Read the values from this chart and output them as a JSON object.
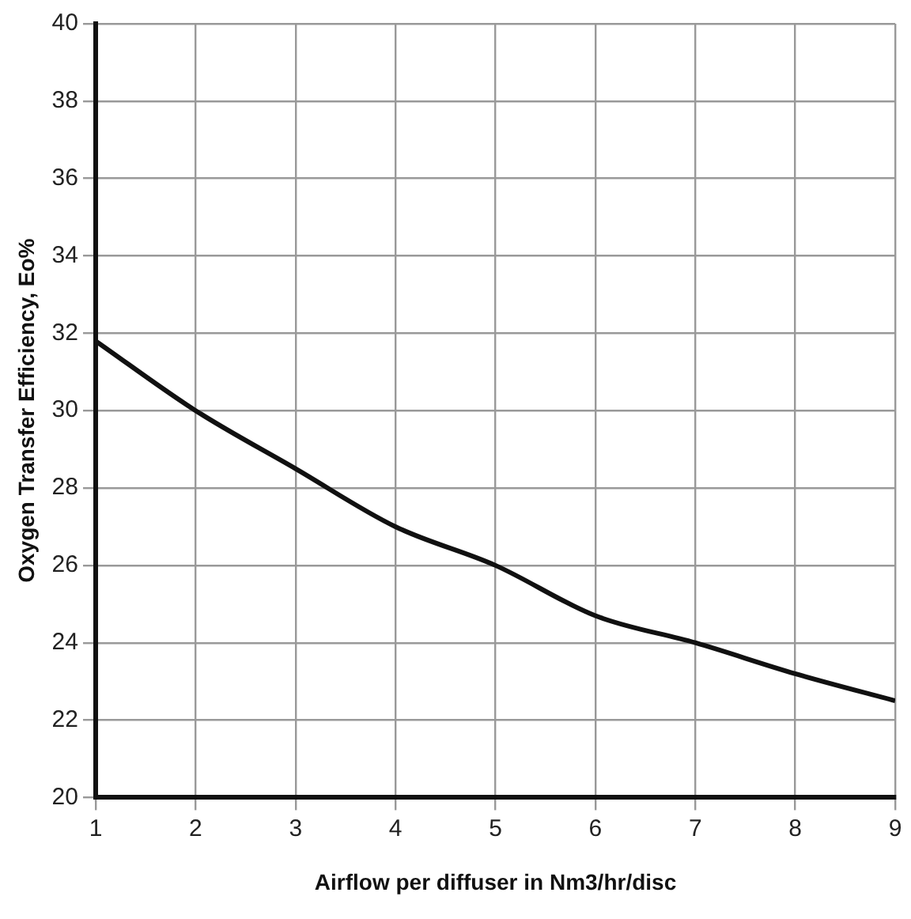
{
  "chart_data": {
    "type": "line",
    "xlabel": "Airflow per diffuser in Nm3/hr/disc",
    "ylabel": "Oxygen Transfer Efficiency, Eo%",
    "x": [
      1,
      2,
      3,
      4,
      5,
      6,
      7,
      8,
      9
    ],
    "series": [
      {
        "color": "#111111",
        "values": [
          31.8,
          30.0,
          28.5,
          27.0,
          26.0,
          24.7,
          24.0,
          23.2,
          22.5
        ]
      }
    ],
    "xlim": [
      1,
      9
    ],
    "xticks": [
      1,
      2,
      3,
      4,
      5,
      6,
      7,
      8,
      9
    ],
    "ylim": [
      20,
      40
    ],
    "yticks": [
      20,
      22,
      24,
      26,
      28,
      30,
      32,
      34,
      36,
      38,
      40
    ],
    "grid": true,
    "legend": false,
    "marker": "none",
    "line_style": "solid"
  }
}
